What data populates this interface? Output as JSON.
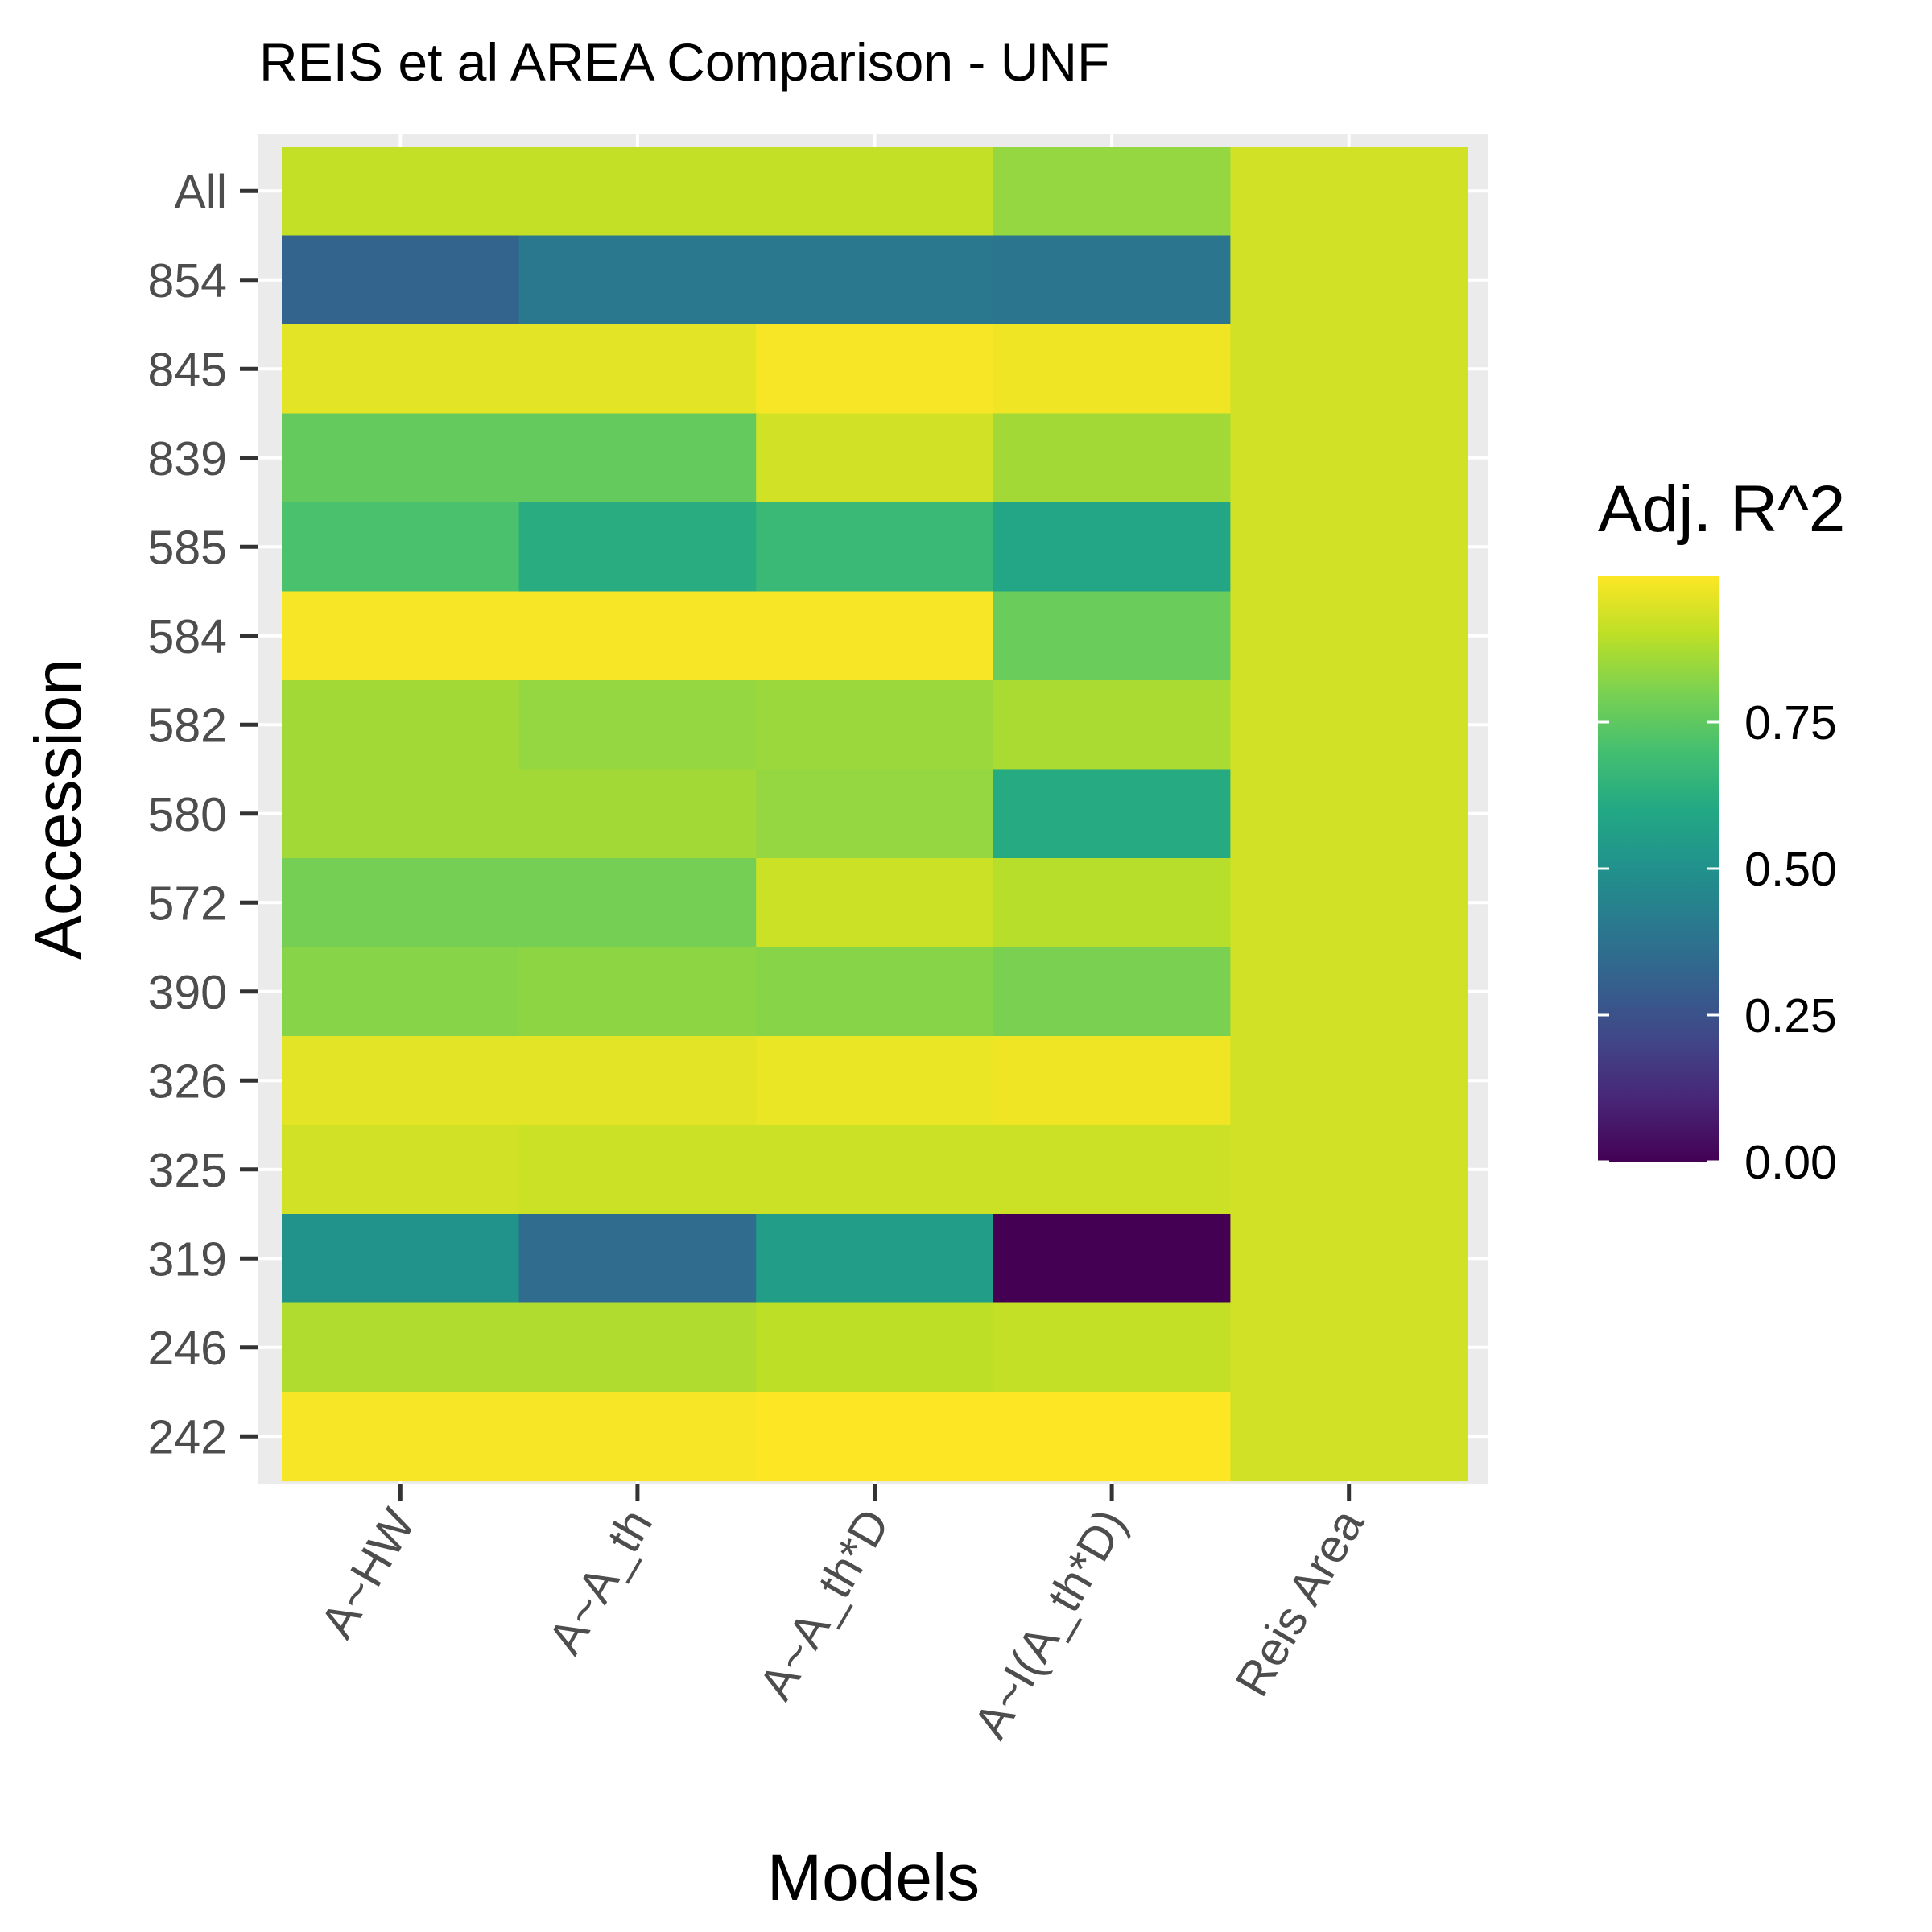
{
  "chart_data": {
    "type": "heatmap",
    "title": "REIS et al AREA Comparison - UNF",
    "xlabel": "Models",
    "ylabel": "Accession",
    "x_categories": [
      "A~HW",
      "A~A_th",
      "A~A_th*D",
      "A~I(A_th*D)",
      "Reis Area"
    ],
    "y_categories": [
      "All",
      "854",
      "845",
      "839",
      "585",
      "584",
      "582",
      "580",
      "572",
      "390",
      "326",
      "325",
      "319",
      "246",
      "242"
    ],
    "values": [
      [
        0.91,
        0.91,
        0.91,
        0.84,
        0.93
      ],
      [
        0.32,
        0.4,
        0.4,
        0.39,
        0.93
      ],
      [
        0.96,
        0.96,
        0.99,
        0.98,
        0.93
      ],
      [
        0.76,
        0.76,
        0.93,
        0.86,
        0.93
      ],
      [
        0.71,
        0.62,
        0.67,
        0.59,
        0.93
      ],
      [
        0.99,
        0.99,
        0.99,
        0.77,
        0.93
      ],
      [
        0.86,
        0.84,
        0.85,
        0.87,
        0.93
      ],
      [
        0.86,
        0.86,
        0.84,
        0.61,
        0.93
      ],
      [
        0.79,
        0.79,
        0.92,
        0.89,
        0.93
      ],
      [
        0.82,
        0.83,
        0.82,
        0.8,
        0.93
      ],
      [
        0.96,
        0.96,
        0.97,
        0.98,
        0.93
      ],
      [
        0.93,
        0.92,
        0.92,
        0.92,
        0.93
      ],
      [
        0.51,
        0.35,
        0.55,
        0.0,
        0.93
      ],
      [
        0.88,
        0.88,
        0.9,
        0.91,
        0.93
      ],
      [
        0.99,
        0.99,
        1.0,
        1.0,
        0.93
      ]
    ],
    "legend": {
      "title": "Adj. R^2",
      "position": "right",
      "range": [
        0,
        1.0
      ],
      "ticks": [
        {
          "value": 0.0,
          "label": "0.00"
        },
        {
          "value": 0.25,
          "label": "0.25"
        },
        {
          "value": 0.5,
          "label": "0.50"
        },
        {
          "value": 0.75,
          "label": "0.75"
        }
      ]
    },
    "colorscale": "viridis",
    "grid": true,
    "panel_background": "#ebebeb",
    "grid_color": "#ffffff"
  }
}
